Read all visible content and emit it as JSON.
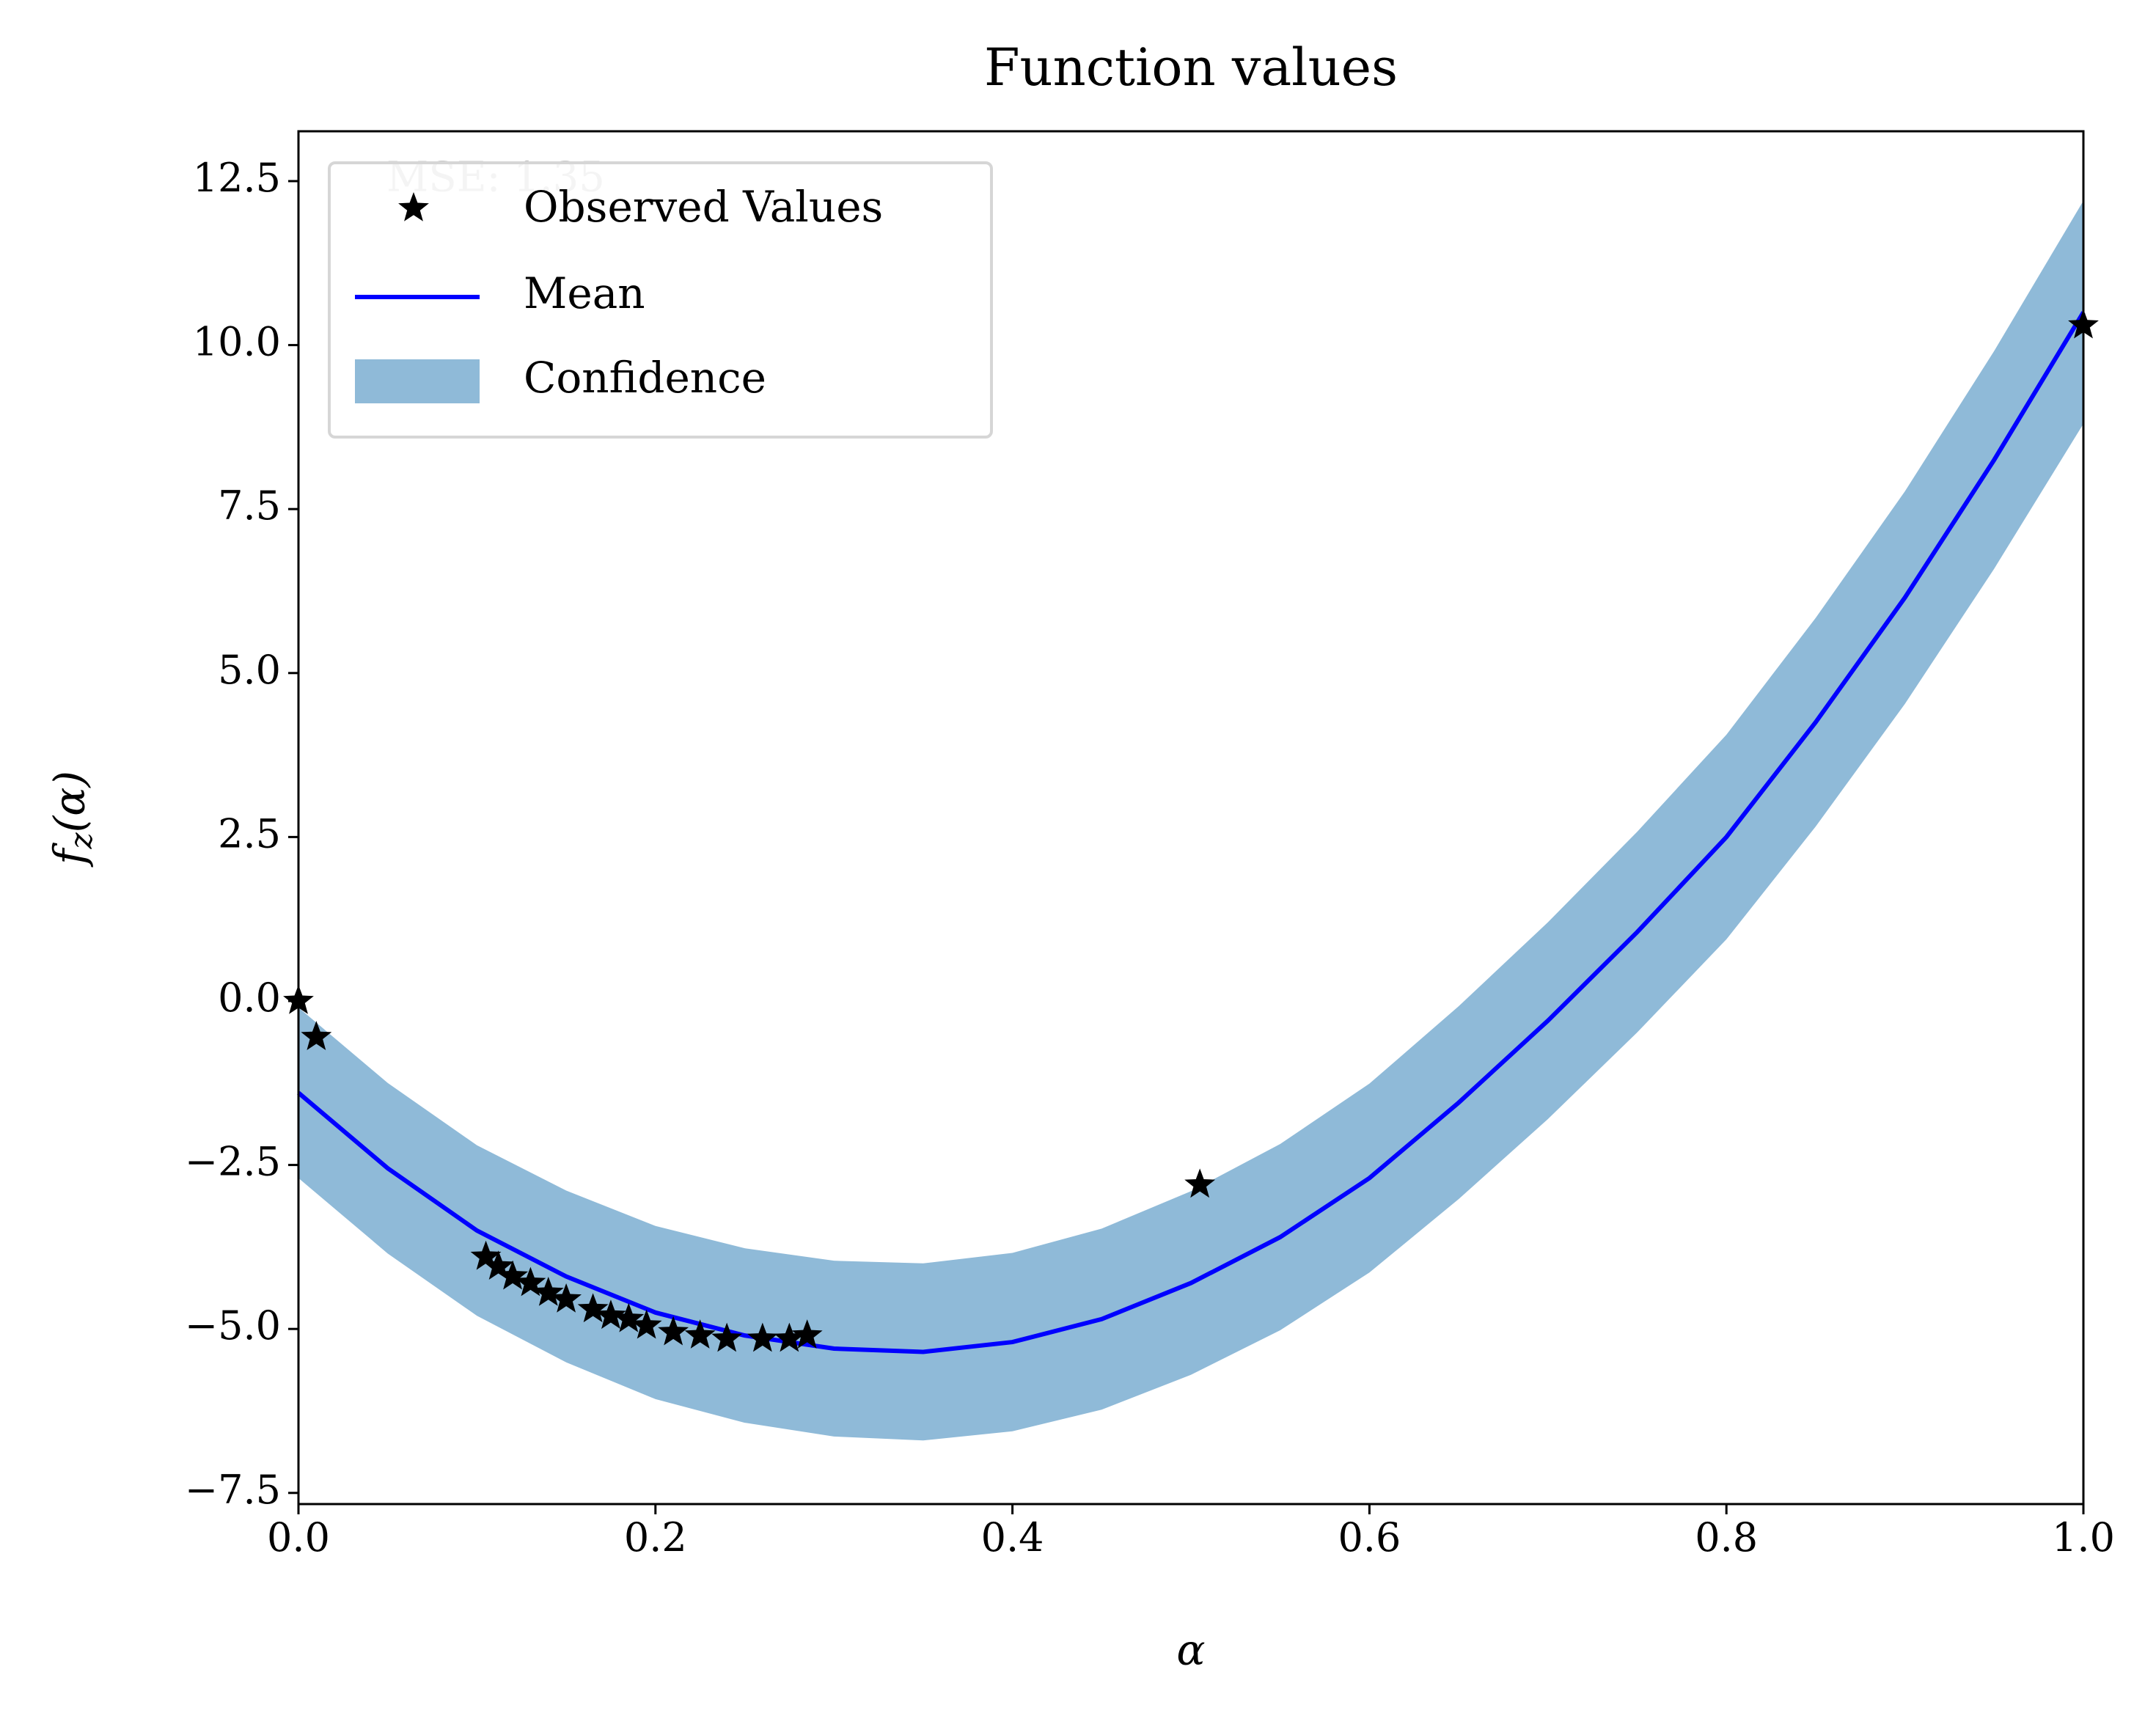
{
  "chart_data": {
    "type": "gp-regression",
    "title": "Function values",
    "xlabel": "α",
    "ylabel": "f_z(α)",
    "annotation": "MSE: 1.35",
    "xlim": [
      0,
      1
    ],
    "ylim": [
      -7.67,
      13.26
    ],
    "xticks": [
      {
        "value": 0,
        "label": "0.0"
      },
      0.2,
      0.4,
      0.6,
      0.8,
      {
        "value": 1,
        "label": "1.0"
      }
    ],
    "yticks": [
      {
        "value": -7.5,
        "label": "−7.5"
      },
      {
        "value": -5,
        "label": "−5.0"
      },
      {
        "value": -2.5,
        "label": "−2.5"
      },
      {
        "value": 0,
        "label": "0.0"
      },
      2.5,
      {
        "value": 5,
        "label": "5.0"
      },
      7.5,
      {
        "value": 10,
        "label": "10.0"
      },
      12.5
    ],
    "legend": "upper left",
    "observed": {
      "name": "Observed Values",
      "color": "#000000",
      "x": [
        0,
        0.01,
        0.105,
        0.112,
        0.12,
        0.13,
        0.14,
        0.15,
        0.165,
        0.175,
        0.185,
        0.195,
        0.21,
        0.225,
        0.24,
        0.26,
        0.275,
        0.285,
        0.505,
        1.0
      ],
      "y": [
        0,
        -0.55,
        -3.9,
        -4.05,
        -4.2,
        -4.3,
        -4.45,
        -4.55,
        -4.7,
        -4.8,
        -4.85,
        -4.95,
        -5.05,
        -5.1,
        -5.15,
        -5.15,
        -5.15,
        -5.1,
        -2.8,
        10.3
      ]
    },
    "mean": {
      "name": "Mean",
      "color": "#0000ff",
      "x": [
        0,
        0.05,
        0.1,
        0.15,
        0.2,
        0.25,
        0.3,
        0.35,
        0.4,
        0.45,
        0.5,
        0.55,
        0.6,
        0.65,
        0.7,
        0.75,
        0.8,
        0.85,
        0.9,
        0.95,
        1.0
      ],
      "values": [
        -1.4,
        -2.55,
        -3.5,
        -4.2,
        -4.75,
        -5.1,
        -5.3,
        -5.35,
        -5.2,
        -4.85,
        -4.3,
        -3.6,
        -2.7,
        -1.55,
        -0.3,
        1.05,
        2.5,
        4.25,
        6.15,
        8.25,
        10.5
      ]
    },
    "confidence": {
      "name": "Confidence",
      "color": "#8fbad8",
      "lower": [
        -2.7,
        -3.85,
        -4.8,
        -5.51,
        -6.07,
        -6.43,
        -6.64,
        -6.7,
        -6.56,
        -6.23,
        -5.7,
        -5.02,
        -4.14,
        -3.02,
        -1.8,
        -0.48,
        0.94,
        2.66,
        4.53,
        6.59,
        8.8
      ],
      "upper": [
        -0.1,
        -1.25,
        -2.2,
        -2.89,
        -3.43,
        -3.77,
        -3.96,
        -4.0,
        -3.84,
        -3.47,
        -2.9,
        -2.18,
        -1.26,
        -0.08,
        1.2,
        2.58,
        4.06,
        5.84,
        7.77,
        9.91,
        12.2
      ]
    }
  }
}
